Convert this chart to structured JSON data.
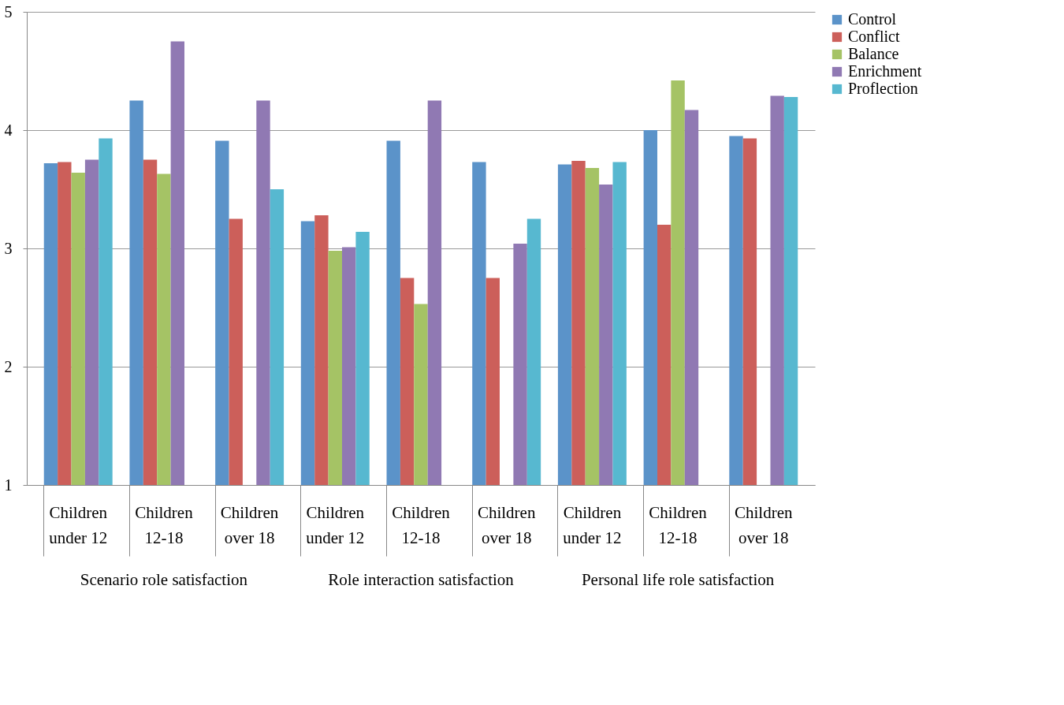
{
  "chart_data": {
    "type": "bar",
    "categories": [
      "Children under 12",
      "Children 12-18",
      "Children over 18",
      "Children under 12",
      "Children 12-18",
      "Children over 18",
      "Children under 12",
      "Children 12-18",
      "Children over 18"
    ],
    "series": [
      {
        "name": "Control",
        "color": "#5b93c9",
        "values": [
          3.72,
          4.25,
          3.91,
          3.23,
          3.91,
          3.73,
          3.71,
          4.0,
          3.95
        ]
      },
      {
        "name": "Conflict",
        "color": "#cc5f5a",
        "values": [
          3.73,
          3.75,
          3.25,
          3.28,
          2.75,
          2.75,
          3.74,
          3.2,
          3.93
        ]
      },
      {
        "name": "Balance",
        "color": "#a5c365",
        "values": [
          3.64,
          3.63,
          null,
          2.98,
          2.53,
          null,
          3.68,
          4.42,
          null
        ]
      },
      {
        "name": "Enrichment",
        "color": "#9079b3",
        "values": [
          3.75,
          4.75,
          4.25,
          3.01,
          4.25,
          3.04,
          3.54,
          4.17,
          4.29
        ]
      },
      {
        "name": "Proflection",
        "color": "#57b8d0",
        "values": [
          3.93,
          null,
          3.5,
          3.14,
          null,
          3.25,
          3.73,
          null,
          4.28
        ]
      }
    ],
    "annotations": [
      "Scenario role satisfaction",
      "Role interaction satisfaction",
      "Personal life role satisfaction"
    ],
    "ylim": [
      1,
      5
    ],
    "yticks": [
      1,
      2,
      3,
      4,
      5
    ],
    "grid": "y",
    "legend": "right"
  }
}
